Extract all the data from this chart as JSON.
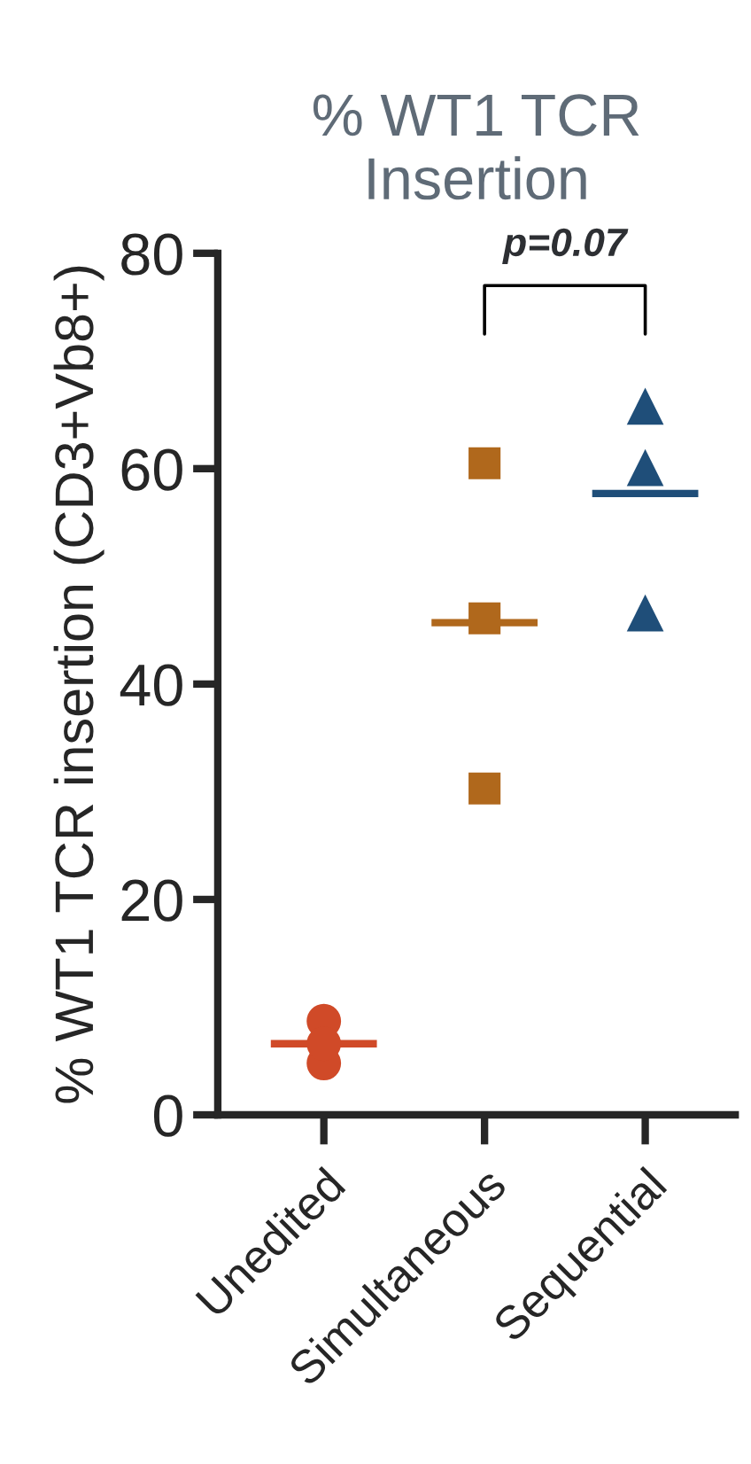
{
  "chart_data": {
    "type": "scatter",
    "title": "% WT1 TCR\nInsertion",
    "ylabel": "% WT1 TCR insertion (CD3+Vb8+)",
    "categories": [
      "Unedited",
      "Simultaneous",
      "Sequential"
    ],
    "series": [
      {
        "type": "scatter",
        "marker": "circle",
        "color": "#d04a28",
        "x": [
          "Unedited",
          "Unedited",
          "Unedited"
        ],
        "values": [
          8.7,
          4.8,
          6.6
        ]
      },
      {
        "type": "scatter",
        "marker": "square",
        "color": "#b0681c",
        "x": [
          "Simultaneous",
          "Simultaneous",
          "Simultaneous"
        ],
        "values": [
          60.5,
          46.1,
          30.3
        ]
      },
      {
        "type": "scatter",
        "marker": "triangle",
        "color": "#1f4e79",
        "x": [
          "Sequential",
          "Sequential",
          "Sequential"
        ],
        "values": [
          65.8,
          60.1,
          46.6
        ]
      }
    ],
    "ref_lines": [
      {
        "axis": "y",
        "value": 6.6,
        "color": "#d04a28"
      },
      {
        "axis": "y",
        "value": 45.7,
        "color": "#b0681c"
      },
      {
        "axis": "y",
        "value": 57.7,
        "color": "#1f4e79"
      }
    ],
    "ylim": [
      0,
      80
    ],
    "yticks": [
      0,
      20,
      40,
      60,
      80
    ],
    "grid": false,
    "legend": false,
    "annotations": [
      "p=0.07"
    ]
  }
}
